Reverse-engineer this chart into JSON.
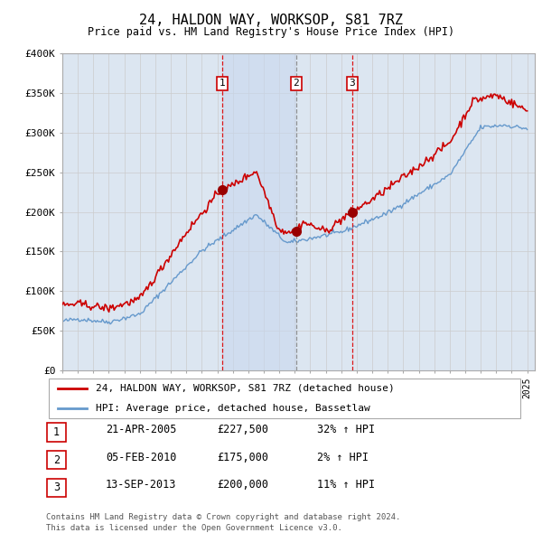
{
  "title": "24, HALDON WAY, WORKSOP, S81 7RZ",
  "subtitle": "Price paid vs. HM Land Registry's House Price Index (HPI)",
  "ylim": [
    0,
    400000
  ],
  "yticks": [
    0,
    50000,
    100000,
    150000,
    200000,
    250000,
    300000,
    350000,
    400000
  ],
  "ytick_labels": [
    "£0",
    "£50K",
    "£100K",
    "£150K",
    "£200K",
    "£250K",
    "£300K",
    "£350K",
    "£400K"
  ],
  "xlim_left": 1995,
  "xlim_right": 2025.5,
  "sale_dates_num": [
    2005.3,
    2010.09,
    2013.71
  ],
  "sale_prices": [
    227500,
    175000,
    200000
  ],
  "sale_labels": [
    "1",
    "2",
    "3"
  ],
  "sale_vline_colors": [
    "#dd0000",
    "#888888",
    "#dd0000"
  ],
  "sale_info": [
    {
      "num": "1",
      "date": "21-APR-2005",
      "price": "£227,500",
      "hpi": "32% ↑ HPI"
    },
    {
      "num": "2",
      "date": "05-FEB-2010",
      "price": "£175,000",
      "hpi": "2% ↑ HPI"
    },
    {
      "num": "3",
      "date": "13-SEP-2013",
      "price": "£200,000",
      "hpi": "11% ↑ HPI"
    }
  ],
  "legend_property": "24, HALDON WAY, WORKSOP, S81 7RZ (detached house)",
  "legend_hpi": "HPI: Average price, detached house, Bassetlaw",
  "footer1": "Contains HM Land Registry data © Crown copyright and database right 2024.",
  "footer2": "This data is licensed under the Open Government Licence v3.0.",
  "property_color": "#cc0000",
  "hpi_color": "#6699cc",
  "sale_dot_color": "#990000",
  "bg_color": "#dce6f1",
  "grid_color": "#cccccc",
  "shade_color": "#c8d8ee"
}
